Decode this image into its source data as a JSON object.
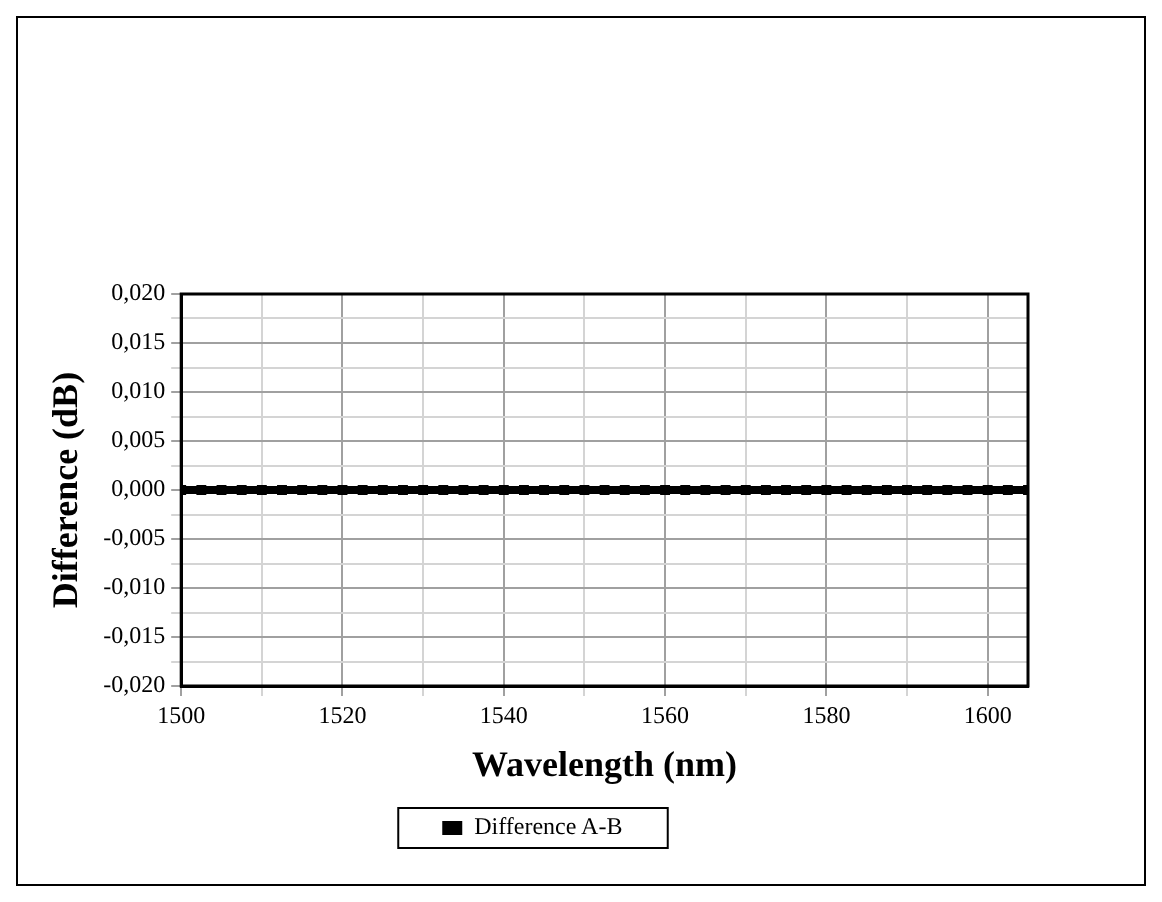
{
  "chart_data": {
    "type": "line",
    "xlabel": "Wavelength (nm)",
    "ylabel": "Difference (dB)",
    "x": [
      1500,
      1502.5,
      1505,
      1507.5,
      1510,
      1512.5,
      1515,
      1517.5,
      1520,
      1522.5,
      1525,
      1527.5,
      1530,
      1532.5,
      1535,
      1537.5,
      1540,
      1542.5,
      1545,
      1547.5,
      1550,
      1552.5,
      1555,
      1557.5,
      1560,
      1562.5,
      1565,
      1567.5,
      1570,
      1572.5,
      1575,
      1577.5,
      1580,
      1582.5,
      1585,
      1587.5,
      1590,
      1592.5,
      1595,
      1597.5,
      1600,
      1602.5,
      1605
    ],
    "series": [
      {
        "name": "Difference A-B",
        "color": "#000000",
        "values": [
          0,
          0,
          0,
          0,
          0,
          0,
          0,
          0,
          0,
          0,
          0,
          0,
          0,
          0,
          0,
          0,
          0,
          0,
          0,
          0,
          0,
          0,
          0,
          0,
          0,
          0,
          0,
          0,
          0,
          0,
          0,
          0,
          0,
          0,
          0,
          0,
          0,
          0,
          0,
          0,
          0,
          0,
          0
        ]
      }
    ],
    "xlim": [
      1500,
      1605
    ],
    "xticks": [
      1500,
      {
        "value": 1510,
        "label": null
      },
      1520,
      {
        "value": 1530,
        "label": null
      },
      1540,
      {
        "value": 1550,
        "label": null
      },
      1560,
      {
        "value": 1570,
        "label": null
      },
      1580,
      {
        "value": 1590,
        "label": null
      },
      1600
    ],
    "ylim": [
      -0.02,
      0.02
    ],
    "yticks": [
      {
        "value": -0.02,
        "label": "-0,020"
      },
      {
        "value": -0.0175,
        "label": null
      },
      {
        "value": -0.015,
        "label": "-0,015"
      },
      {
        "value": -0.0125,
        "label": null
      },
      {
        "value": -0.01,
        "label": "-0,010"
      },
      {
        "value": -0.0075,
        "label": null
      },
      {
        "value": -0.005,
        "label": "-0,005"
      },
      {
        "value": -0.0025,
        "label": null
      },
      {
        "value": 0,
        "label": "0,000"
      },
      {
        "value": 0.0025,
        "label": null
      },
      {
        "value": 0.005,
        "label": "0,005"
      },
      {
        "value": 0.0075,
        "label": null
      },
      {
        "value": 0.01,
        "label": "0,010"
      },
      {
        "value": 0.0125,
        "label": null
      },
      {
        "value": 0.015,
        "label": "0,015"
      },
      {
        "value": 0.0175,
        "label": null
      },
      {
        "value": 0.02,
        "label": "0,020"
      }
    ],
    "grid": true,
    "legend": "bottom",
    "marker": "square",
    "line_style": "solid"
  }
}
